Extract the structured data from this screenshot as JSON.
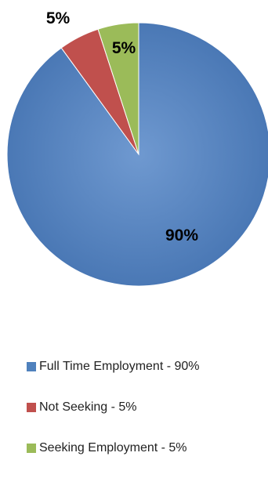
{
  "chart_data": {
    "type": "pie",
    "title": "",
    "slices": [
      {
        "label": "Full Time Employment - 90%",
        "value": 90,
        "display": "90%",
        "color": "#4f81bd"
      },
      {
        "label": "Not Seeking - 5%",
        "value": 5,
        "display": "5%",
        "color": "#c0504d"
      },
      {
        "label": "Seeking Employment - 5%",
        "value": 5,
        "display": "5%",
        "color": "#9bbb59"
      }
    ],
    "legend_position": "bottom"
  }
}
